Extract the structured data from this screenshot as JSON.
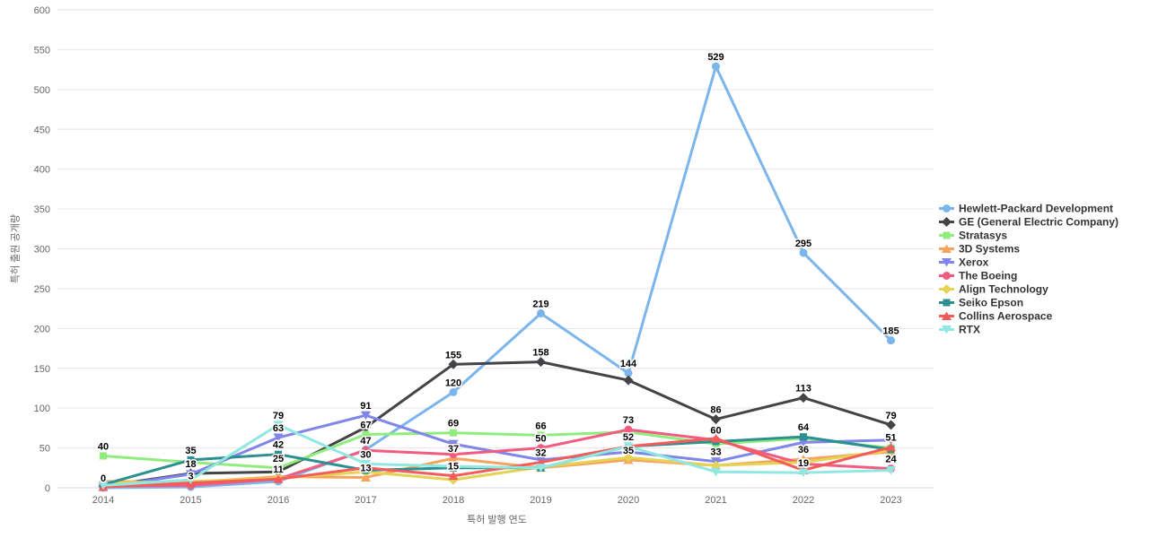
{
  "chart_data": {
    "type": "line",
    "title": "",
    "xlabel": "특허 발행 연도",
    "ylabel": "특허 출원 공개량",
    "x_categories": [
      "2014",
      "2015",
      "2016",
      "2017",
      "2018",
      "2019",
      "2020",
      "2021",
      "2022",
      "2023"
    ],
    "ylim": [
      0,
      600
    ],
    "ytick_step": 50,
    "grid": true,
    "legend_position": "right",
    "series": [
      {
        "name": "Hewlett-Packard Development",
        "color": "#7cb5ec",
        "marker": "circle",
        "values": [
          0,
          1,
          8,
          48,
          120,
          219,
          144,
          529,
          295,
          185
        ],
        "labeled_years": [
          0,
          4,
          5,
          6,
          7,
          8,
          9
        ]
      },
      {
        "name": "GE (General Electric Company)",
        "color": "#434348",
        "marker": "diamond",
        "values": [
          2,
          18,
          20,
          76,
          155,
          158,
          135,
          86,
          113,
          79
        ],
        "labeled_years": [
          1,
          4,
          5,
          7,
          8,
          9
        ]
      },
      {
        "name": "Stratasys",
        "color": "#90ed7d",
        "marker": "square",
        "values": [
          40,
          32,
          25,
          67,
          69,
          66,
          70,
          55,
          62,
          50
        ],
        "labeled_years": [
          0,
          2,
          3,
          4,
          5
        ]
      },
      {
        "name": "3D Systems",
        "color": "#f7a35c",
        "marker": "triangle",
        "values": [
          8,
          7,
          14,
          13,
          37,
          25,
          35,
          28,
          36,
          45
        ],
        "labeled_years": [
          3,
          4,
          6,
          8
        ]
      },
      {
        "name": "Xerox",
        "color": "#8085e9",
        "marker": "triangle-down",
        "values": [
          1,
          17,
          63,
          91,
          55,
          35,
          45,
          33,
          57,
          60
        ],
        "labeled_years": [
          2,
          3,
          7
        ]
      },
      {
        "name": "The Boeing",
        "color": "#f15c80",
        "marker": "circle",
        "values": [
          2,
          3,
          11,
          47,
          42,
          50,
          73,
          60,
          30,
          24
        ],
        "labeled_years": [
          1,
          2,
          3,
          5,
          6,
          7,
          9
        ]
      },
      {
        "name": "Align Technology",
        "color": "#e4d354",
        "marker": "diamond",
        "values": [
          6,
          8,
          12,
          20,
          10,
          26,
          38,
          28,
          32,
          47
        ],
        "labeled_years": []
      },
      {
        "name": "Seiko Epson",
        "color": "#2b908f",
        "marker": "square",
        "values": [
          4,
          35,
          42,
          22,
          25,
          25,
          52,
          58,
          64,
          48
        ],
        "labeled_years": [
          1,
          2,
          6,
          8
        ]
      },
      {
        "name": "Collins Aerospace",
        "color": "#f45b5b",
        "marker": "triangle",
        "values": [
          1,
          6,
          11,
          25,
          15,
          32,
          52,
          62,
          22,
          51
        ],
        "labeled_years": [
          4,
          5,
          9
        ]
      },
      {
        "name": "RTX",
        "color": "#91e8e1",
        "marker": "triangle-down",
        "values": [
          3,
          10,
          79,
          30,
          27,
          25,
          52,
          20,
          19,
          22
        ],
        "labeled_years": [
          2,
          3,
          8
        ]
      }
    ]
  },
  "colors": {
    "background": "#ffffff",
    "grid": "#e6e6e6",
    "axis_line": "#ccd6eb",
    "tick_label": "#666666",
    "axis_title": "#666666",
    "data_label": "#000000",
    "legend_text": "#333333"
  }
}
